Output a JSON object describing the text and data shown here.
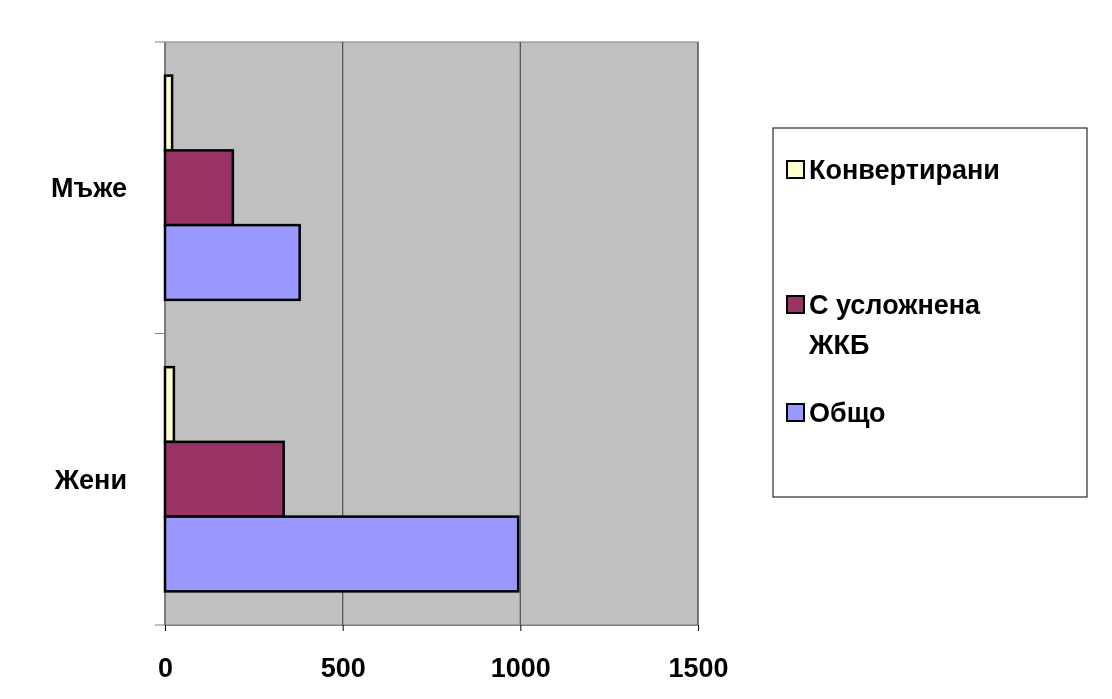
{
  "chart_data": {
    "type": "bar",
    "orientation": "horizontal",
    "categories": [
      "Мъже",
      "Жени"
    ],
    "series": [
      {
        "name": "Конвертирани",
        "color": "#ffffcc",
        "values": [
          20,
          25
        ]
      },
      {
        "name": "С усложнена ЖКБ",
        "color": "#993366",
        "values": [
          191,
          334
        ]
      },
      {
        "name": "Общо",
        "color": "#9999ff",
        "values": [
          379,
          994
        ]
      }
    ],
    "xlim": [
      0,
      1500
    ],
    "xticks": [
      0,
      500,
      1000,
      1500
    ],
    "grid": "x",
    "legend": "right"
  }
}
